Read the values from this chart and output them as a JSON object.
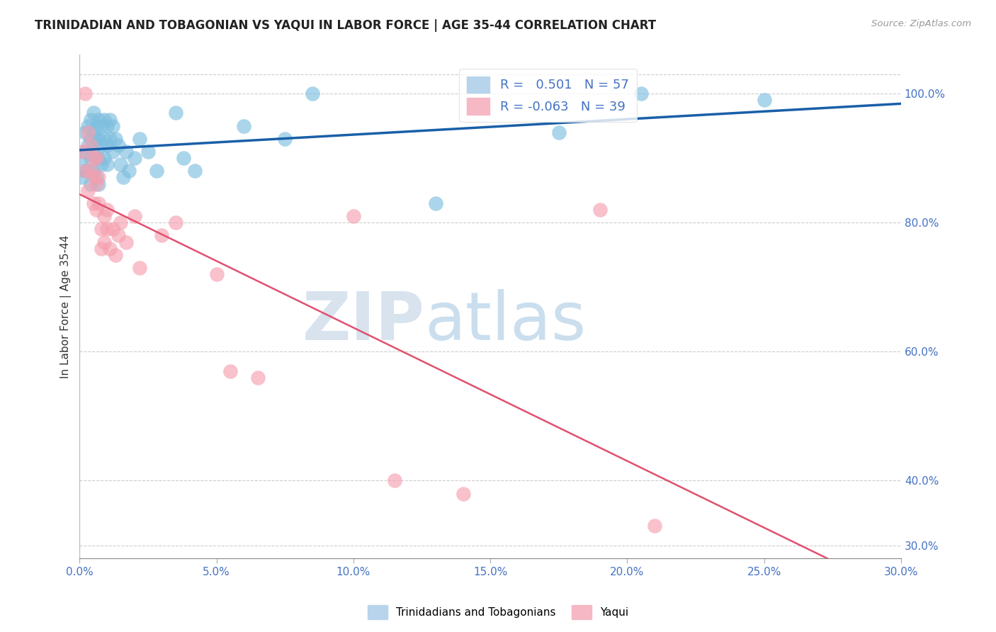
{
  "title": "TRINIDADIAN AND TOBAGONIAN VS YAQUI IN LABOR FORCE | AGE 35-44 CORRELATION CHART",
  "source": "Source: ZipAtlas.com",
  "ylabel": "In Labor Force | Age 35-44",
  "r_blue": 0.501,
  "n_blue": 57,
  "r_pink": -0.063,
  "n_pink": 39,
  "xlim": [
    0.0,
    0.3
  ],
  "ylim": [
    0.28,
    1.06
  ],
  "xtick_labels": [
    "0.0%",
    "5.0%",
    "10.0%",
    "15.0%",
    "20.0%",
    "25.0%",
    "30.0%"
  ],
  "xtick_vals": [
    0.0,
    0.05,
    0.1,
    0.15,
    0.2,
    0.25,
    0.3
  ],
  "ytick_labels": [
    "30.0%",
    "40.0%",
    "60.0%",
    "80.0%",
    "100.0%"
  ],
  "ytick_vals": [
    0.3,
    0.4,
    0.6,
    0.8,
    1.0
  ],
  "blue_color": "#7fbfdf",
  "pink_color": "#f5a0b0",
  "blue_line_color": "#1a5fa8",
  "pink_line_color": "#e05070",
  "legend_label_blue": "Trinidadians and Tobagonians",
  "legend_label_pink": "Yaqui",
  "watermark_zip": "ZIP",
  "watermark_atlas": "atlas",
  "blue_x": [
    0.001,
    0.001,
    0.002,
    0.002,
    0.002,
    0.003,
    0.003,
    0.003,
    0.004,
    0.004,
    0.004,
    0.004,
    0.005,
    0.005,
    0.005,
    0.005,
    0.006,
    0.006,
    0.006,
    0.006,
    0.007,
    0.007,
    0.007,
    0.007,
    0.008,
    0.008,
    0.008,
    0.009,
    0.009,
    0.009,
    0.01,
    0.01,
    0.01,
    0.011,
    0.011,
    0.012,
    0.012,
    0.013,
    0.014,
    0.015,
    0.016,
    0.017,
    0.018,
    0.02,
    0.022,
    0.025,
    0.028,
    0.035,
    0.038,
    0.042,
    0.06,
    0.075,
    0.085,
    0.13,
    0.175,
    0.205,
    0.25
  ],
  "blue_y": [
    0.9,
    0.87,
    0.94,
    0.91,
    0.88,
    0.95,
    0.92,
    0.88,
    0.96,
    0.93,
    0.9,
    0.86,
    0.97,
    0.94,
    0.91,
    0.88,
    0.95,
    0.93,
    0.9,
    0.87,
    0.96,
    0.93,
    0.9,
    0.86,
    0.95,
    0.92,
    0.89,
    0.96,
    0.93,
    0.9,
    0.95,
    0.92,
    0.89,
    0.96,
    0.93,
    0.95,
    0.91,
    0.93,
    0.92,
    0.89,
    0.87,
    0.91,
    0.88,
    0.9,
    0.93,
    0.91,
    0.88,
    0.97,
    0.9,
    0.88,
    0.95,
    0.93,
    1.0,
    0.83,
    0.94,
    1.0,
    0.99
  ],
  "pink_x": [
    0.001,
    0.002,
    0.002,
    0.003,
    0.003,
    0.004,
    0.004,
    0.005,
    0.005,
    0.005,
    0.006,
    0.006,
    0.006,
    0.007,
    0.007,
    0.008,
    0.008,
    0.009,
    0.009,
    0.01,
    0.01,
    0.011,
    0.012,
    0.013,
    0.014,
    0.015,
    0.017,
    0.02,
    0.022,
    0.03,
    0.035,
    0.05,
    0.055,
    0.065,
    0.1,
    0.115,
    0.14,
    0.19,
    0.21
  ],
  "pink_y": [
    0.91,
    1.0,
    0.88,
    0.94,
    0.85,
    0.92,
    0.88,
    0.9,
    0.87,
    0.83,
    0.9,
    0.86,
    0.82,
    0.87,
    0.83,
    0.79,
    0.76,
    0.81,
    0.77,
    0.82,
    0.79,
    0.76,
    0.79,
    0.75,
    0.78,
    0.8,
    0.77,
    0.81,
    0.73,
    0.78,
    0.8,
    0.72,
    0.57,
    0.56,
    0.81,
    0.4,
    0.38,
    0.82,
    0.33
  ]
}
